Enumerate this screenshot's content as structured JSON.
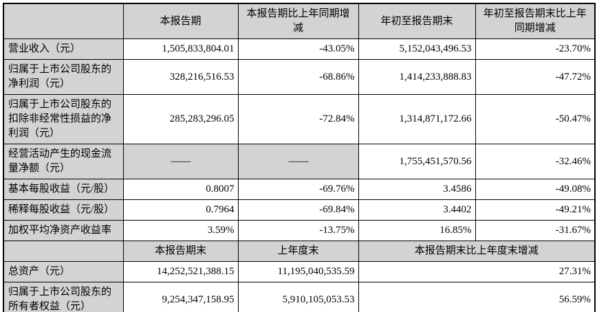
{
  "colors": {
    "shade": "#d3d3d3",
    "border": "#000000",
    "text": "#000000",
    "background": "#ffffff"
  },
  "table": {
    "sections": [
      {
        "header": [
          {
            "text": "",
            "type": "corner"
          },
          {
            "text": "本报告期",
            "type": "header"
          },
          {
            "text": "本报告期比上年同期增\n减",
            "type": "header"
          },
          {
            "text": "年初至报告期末",
            "type": "header"
          },
          {
            "text": "年初至报告期末比上年\n同期增减",
            "type": "header"
          }
        ],
        "rows": [
          {
            "cells": [
              {
                "text": "营业收入（元）",
                "type": "label"
              },
              {
                "text": "1,505,833,804.01",
                "type": "number"
              },
              {
                "text": "-43.05%",
                "type": "number"
              },
              {
                "text": "5,152,043,496.53",
                "type": "number"
              },
              {
                "text": "-23.70%",
                "type": "number"
              }
            ]
          },
          {
            "cells": [
              {
                "text": "归属于上市公司股东的\n净利润（元）",
                "type": "label"
              },
              {
                "text": "328,216,516.53",
                "type": "number"
              },
              {
                "text": "-68.86%",
                "type": "number"
              },
              {
                "text": "1,414,233,888.83",
                "type": "number"
              },
              {
                "text": "-47.72%",
                "type": "number"
              }
            ]
          },
          {
            "cells": [
              {
                "text": "归属于上市公司股东的\n扣除非经常性损益的净\n利润（元）",
                "type": "label"
              },
              {
                "text": "285,283,296.05",
                "type": "number"
              },
              {
                "text": "-72.84%",
                "type": "number"
              },
              {
                "text": "1,314,871,172.66",
                "type": "number"
              },
              {
                "text": "-50.47%",
                "type": "number"
              }
            ]
          },
          {
            "cells": [
              {
                "text": "经营活动产生的现金流\n量净额（元）",
                "type": "label"
              },
              {
                "text": "——",
                "type": "dash"
              },
              {
                "text": "——",
                "type": "dash"
              },
              {
                "text": "1,755,451,570.56",
                "type": "number"
              },
              {
                "text": "-32.46%",
                "type": "number"
              }
            ]
          },
          {
            "cells": [
              {
                "text": "基本每股收益（元/股）",
                "type": "label"
              },
              {
                "text": "0.8007",
                "type": "number"
              },
              {
                "text": "-69.76%",
                "type": "number"
              },
              {
                "text": "3.4586",
                "type": "number"
              },
              {
                "text": "-49.08%",
                "type": "number"
              }
            ]
          },
          {
            "cells": [
              {
                "text": "稀释每股收益（元/股）",
                "type": "label"
              },
              {
                "text": "0.7964",
                "type": "number"
              },
              {
                "text": "-69.84%",
                "type": "number"
              },
              {
                "text": "3.4402",
                "type": "number"
              },
              {
                "text": "-49.21%",
                "type": "number"
              }
            ]
          },
          {
            "cells": [
              {
                "text": "加权平均净资产收益率",
                "type": "label"
              },
              {
                "text": "3.59%",
                "type": "number"
              },
              {
                "text": "-13.75%",
                "type": "number"
              },
              {
                "text": "16.85%",
                "type": "number"
              },
              {
                "text": "-31.67%",
                "type": "number"
              }
            ]
          }
        ]
      },
      {
        "header": [
          {
            "text": "",
            "type": "corner"
          },
          {
            "text": "本报告期末",
            "type": "header"
          },
          {
            "text": "上年度末",
            "type": "header"
          },
          {
            "text": "本报告期末比上年度末增减",
            "type": "header",
            "colspan": 2
          }
        ],
        "rows": [
          {
            "cells": [
              {
                "text": "总资产（元）",
                "type": "label"
              },
              {
                "text": "14,252,521,388.15",
                "type": "number"
              },
              {
                "text": "11,195,040,535.59",
                "type": "number"
              },
              {
                "text": "27.31%",
                "type": "number",
                "colspan": 2
              }
            ]
          },
          {
            "cells": [
              {
                "text": "归属于上市公司股东的\n所有者权益（元）",
                "type": "label"
              },
              {
                "text": "9,254,347,158.95",
                "type": "number"
              },
              {
                "text": "5,910,105,053.53",
                "type": "number"
              },
              {
                "text": "56.59%",
                "type": "number",
                "colspan": 2
              }
            ]
          }
        ]
      }
    ]
  }
}
